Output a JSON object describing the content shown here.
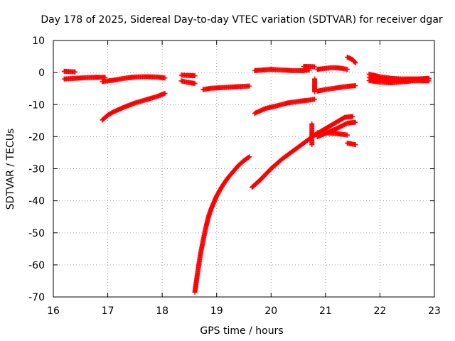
{
  "chart_data": {
    "type": "scatter",
    "title": "Day 178 of 2025, Sidereal Day-to-day VTEC variation (SDTVAR) for receiver dgar",
    "xlabel": "GPS time / hours",
    "ylabel": "SDTVAR / TECUs",
    "xlim": [
      16,
      23
    ],
    "ylim": [
      -70,
      10
    ],
    "xticks": [
      16,
      17,
      18,
      19,
      20,
      21,
      22,
      23
    ],
    "yticks": [
      10,
      0,
      -10,
      -20,
      -30,
      -40,
      -50,
      -60,
      -70
    ],
    "grid": true,
    "marker": "+",
    "color": "#ff0000",
    "series": [
      {
        "points": [
          [
            16.2,
            0.4
          ],
          [
            16.3,
            0.3
          ],
          [
            16.4,
            0.2
          ]
        ]
      },
      {
        "points": [
          [
            16.2,
            -2.0
          ],
          [
            16.4,
            -1.8
          ],
          [
            16.6,
            -1.6
          ],
          [
            16.8,
            -1.5
          ],
          [
            16.95,
            -1.5
          ]
        ]
      },
      {
        "points": [
          [
            16.9,
            -2.8
          ],
          [
            17.1,
            -2.4
          ],
          [
            17.3,
            -1.8
          ],
          [
            17.5,
            -1.4
          ],
          [
            17.7,
            -1.3
          ],
          [
            17.9,
            -1.4
          ],
          [
            18.05,
            -1.7
          ]
        ]
      },
      {
        "points": [
          [
            16.9,
            -14.8
          ],
          [
            17.0,
            -13.3
          ],
          [
            17.1,
            -12.3
          ],
          [
            17.3,
            -10.8
          ],
          [
            17.5,
            -9.5
          ],
          [
            17.7,
            -8.5
          ],
          [
            17.9,
            -7.5
          ],
          [
            18.05,
            -6.5
          ]
        ]
      },
      {
        "points": [
          [
            18.35,
            -0.8
          ],
          [
            18.45,
            -0.9
          ],
          [
            18.6,
            -1.0
          ]
        ]
      },
      {
        "points": [
          [
            18.35,
            -2.6
          ],
          [
            18.45,
            -3.0
          ],
          [
            18.6,
            -3.4
          ]
        ]
      },
      {
        "points": [
          [
            18.6,
            -68.5
          ],
          [
            18.65,
            -62.5
          ],
          [
            18.7,
            -57.0
          ],
          [
            18.75,
            -52.5
          ],
          [
            18.8,
            -48.5
          ],
          [
            18.85,
            -45.0
          ],
          [
            18.9,
            -42.5
          ],
          [
            18.95,
            -40.5
          ],
          [
            19.0,
            -38.5
          ],
          [
            19.1,
            -35.5
          ],
          [
            19.2,
            -33.0
          ],
          [
            19.3,
            -31.0
          ],
          [
            19.4,
            -29.0
          ],
          [
            19.5,
            -27.5
          ],
          [
            19.6,
            -26.3
          ]
        ]
      },
      {
        "points": [
          [
            18.75,
            -5.3
          ],
          [
            18.9,
            -4.9
          ],
          [
            19.1,
            -4.7
          ],
          [
            19.3,
            -4.5
          ],
          [
            19.5,
            -4.3
          ],
          [
            19.6,
            -4.2
          ]
        ]
      },
      {
        "points": [
          [
            19.7,
            0.6
          ],
          [
            19.85,
            0.8
          ],
          [
            20.0,
            1.0
          ],
          [
            20.2,
            0.8
          ],
          [
            20.4,
            0.6
          ],
          [
            20.6,
            0.6
          ],
          [
            20.7,
            0.8
          ]
        ]
      },
      {
        "points": [
          [
            20.6,
            1.9
          ],
          [
            20.7,
            1.9
          ],
          [
            20.8,
            1.8
          ]
        ]
      },
      {
        "points": [
          [
            19.65,
            -35.8
          ],
          [
            19.8,
            -33.5
          ],
          [
            20.0,
            -30.0
          ],
          [
            20.2,
            -27.0
          ],
          [
            20.4,
            -24.5
          ],
          [
            20.6,
            -22.0
          ],
          [
            20.8,
            -19.5
          ],
          [
            21.0,
            -17.5
          ],
          [
            21.2,
            -15.5
          ],
          [
            21.35,
            -14.0
          ],
          [
            21.5,
            -13.7
          ]
        ]
      },
      {
        "points": [
          [
            19.7,
            -12.7
          ],
          [
            19.9,
            -11.2
          ],
          [
            20.1,
            -10.4
          ],
          [
            20.3,
            -9.5
          ],
          [
            20.5,
            -9.0
          ],
          [
            20.7,
            -8.6
          ],
          [
            20.8,
            -8.3
          ]
        ]
      },
      {
        "points": [
          [
            20.85,
            1.0
          ],
          [
            21.0,
            1.3
          ],
          [
            21.1,
            1.5
          ],
          [
            21.2,
            1.5
          ],
          [
            21.3,
            1.3
          ],
          [
            21.4,
            1.0
          ]
        ]
      },
      {
        "points": [
          [
            20.85,
            -5.8
          ],
          [
            21.0,
            -5.3
          ],
          [
            21.2,
            -4.8
          ],
          [
            21.4,
            -4.3
          ],
          [
            21.55,
            -4.1
          ]
        ]
      },
      {
        "points": [
          [
            20.85,
            -18.8
          ],
          [
            21.0,
            -18.8
          ],
          [
            21.2,
            -19.0
          ],
          [
            21.4,
            -19.5
          ]
        ]
      },
      {
        "points": [
          [
            20.85,
            -20.0
          ],
          [
            21.0,
            -19.0
          ],
          [
            21.2,
            -17.5
          ],
          [
            21.4,
            -15.8
          ],
          [
            21.55,
            -15.5
          ]
        ]
      },
      {
        "points": [
          [
            21.4,
            -22.0
          ],
          [
            21.55,
            -22.5
          ]
        ]
      },
      {
        "points": [
          [
            21.4,
            4.8
          ],
          [
            21.5,
            4.0
          ],
          [
            21.55,
            3.0
          ]
        ]
      },
      {
        "points": [
          [
            20.75,
            -16.0
          ],
          [
            20.75,
            -22.5
          ],
          [
            20.8,
            -2.0
          ],
          [
            20.8,
            -6.0
          ]
        ]
      },
      {
        "points": [
          [
            21.8,
            -0.5
          ],
          [
            22.0,
            -1.3
          ],
          [
            22.2,
            -1.8
          ],
          [
            22.4,
            -2.0
          ],
          [
            22.6,
            -2.0
          ],
          [
            22.9,
            -2.0
          ]
        ]
      },
      {
        "points": [
          [
            21.8,
            -1.6
          ],
          [
            22.0,
            -2.0
          ],
          [
            22.2,
            -2.5
          ],
          [
            22.4,
            -2.4
          ],
          [
            22.6,
            -2.1
          ],
          [
            22.9,
            -1.8
          ]
        ]
      },
      {
        "points": [
          [
            21.8,
            -2.5
          ],
          [
            22.0,
            -3.0
          ],
          [
            22.2,
            -3.2
          ],
          [
            22.4,
            -2.9
          ],
          [
            22.6,
            -2.6
          ],
          [
            22.9,
            -2.6
          ]
        ]
      }
    ]
  }
}
